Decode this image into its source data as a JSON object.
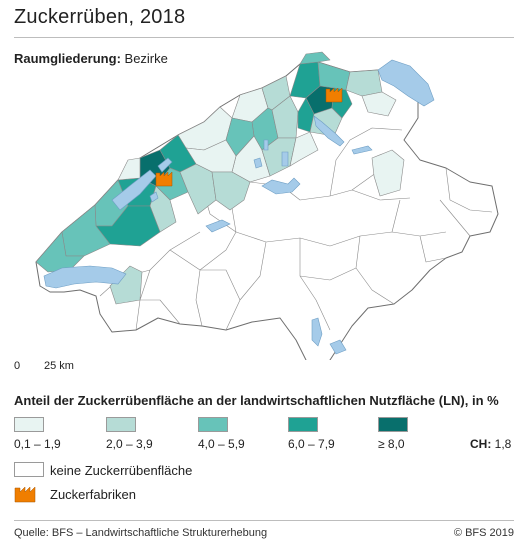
{
  "title": "Zuckerrüben, 2018",
  "subtitle_label": "Raumgliederung:",
  "subtitle_value": " Bezirke",
  "scale_zero": "0",
  "scale_km": "25 km",
  "legend": {
    "title": "Anteil der Zuckerrübenfläche an der landwirtschaftlichen Nutzfläche (LN), in %",
    "classes": [
      {
        "label": "0,1 – 1,9",
        "color": "#e8f4f2"
      },
      {
        "label": "2,0 – 3,9",
        "color": "#b6dcd6"
      },
      {
        "label": "4,0 – 5,9",
        "color": "#67c3b9"
      },
      {
        "label": "6,0 – 7,9",
        "color": "#1fa294"
      },
      {
        "label": "≥ 8,0",
        "color": "#086f6c"
      }
    ],
    "ch_label": "CH:",
    "ch_value": " 1,8",
    "none_label": "keine Zuckerrübenfläche",
    "factory_label": "Zuckerfabriken"
  },
  "map_colors": {
    "lake": "#a5cbe9",
    "factory": "#f07e00",
    "border": "#6e6e6e"
  },
  "source": "Quelle: BFS – Landwirtschaftliche Strukturerhebung",
  "copyright": "© BFS 2019"
}
